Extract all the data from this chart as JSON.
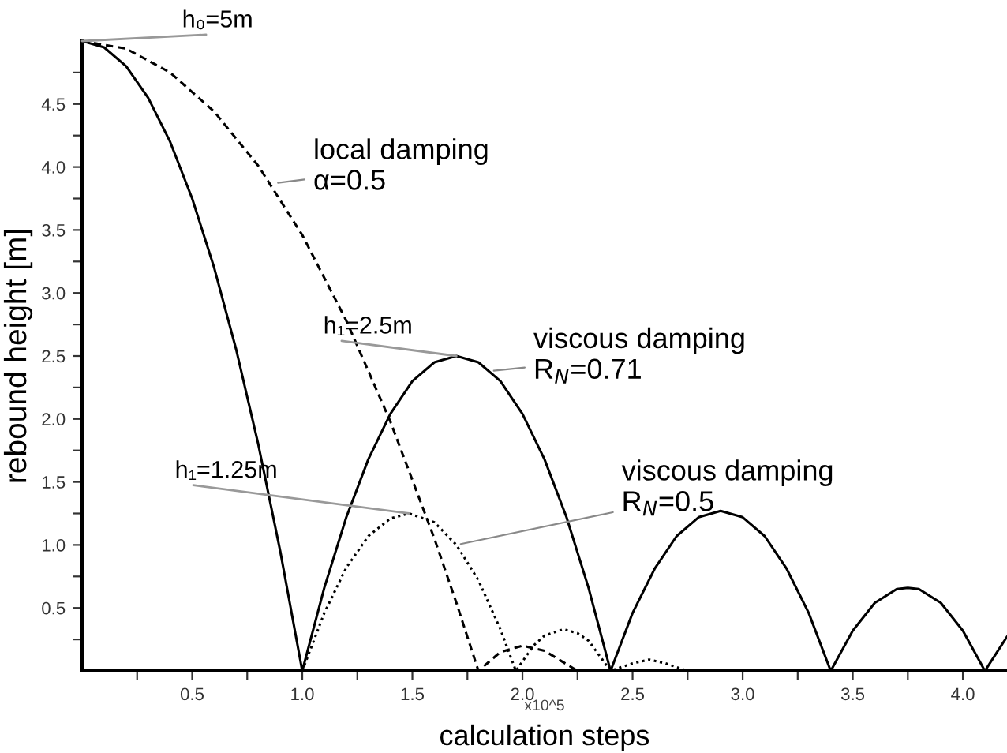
{
  "chart_data": {
    "type": "line",
    "xlabel": "calculation steps",
    "ylabel": "rebound height [m]",
    "xlim": [
      0,
      4.2
    ],
    "ylim": [
      0,
      5.0
    ],
    "xticks": [
      {
        "value": 0.25,
        "label": null
      },
      0.5,
      {
        "value": 0.75,
        "label": null
      },
      {
        "value": 1,
        "label": "1.0"
      },
      {
        "value": 1.25,
        "label": null
      },
      1.5,
      {
        "value": 1.75,
        "label": null
      },
      {
        "value": 2,
        "label": "2.0"
      },
      {
        "value": 2.25,
        "label": null
      },
      2.5,
      {
        "value": 2.75,
        "label": null
      },
      {
        "value": 3,
        "label": "3.0"
      },
      {
        "value": 3.25,
        "label": null
      },
      3.5,
      {
        "value": 3.75,
        "label": null
      },
      {
        "value": 4,
        "label": "4.0"
      }
    ],
    "yticks": [
      {
        "value": 0.25,
        "label": null
      },
      0.5,
      {
        "value": 0.75,
        "label": null
      },
      {
        "value": 1,
        "label": "1.0"
      },
      {
        "value": 1.25,
        "label": null
      },
      1.5,
      {
        "value": 1.75,
        "label": null
      },
      {
        "value": 2,
        "label": "2.0"
      },
      {
        "value": 2.25,
        "label": null
      },
      2.5,
      {
        "value": 2.75,
        "label": null
      },
      {
        "value": 3,
        "label": "3.0"
      },
      {
        "value": 3.25,
        "label": null
      },
      3.5,
      {
        "value": 3.75,
        "label": null
      },
      {
        "value": 4,
        "label": "4.0"
      },
      {
        "value": 4.25,
        "label": null
      },
      4.5,
      {
        "value": 4.75,
        "label": null
      }
    ],
    "grid": false,
    "legend": false,
    "marker": "none",
    "series": [
      {
        "name": "viscous damping\nR$_{N}$=0.71",
        "color": "#000000",
        "line_style": "solid",
        "x": [
          0,
          0.1,
          0.2,
          0.3,
          0.4,
          0.5,
          0.6,
          0.7,
          0.8,
          0.9,
          1.0,
          1.1,
          1.2,
          1.3,
          1.4,
          1.5,
          1.6,
          1.7,
          1.8,
          1.9,
          2.0,
          2.1,
          2.2,
          2.3,
          2.4,
          2.5,
          2.6,
          2.7,
          2.8,
          2.9,
          3.0,
          3.1,
          3.2,
          3.3,
          3.4,
          3.5,
          3.6,
          3.7,
          3.75,
          3.8,
          3.9,
          4.0,
          4.1,
          4.2
        ],
        "values": [
          5.0,
          4.95,
          4.8,
          4.55,
          4.2,
          3.75,
          3.2,
          2.55,
          1.8,
          0.95,
          0.0,
          0.66,
          1.22,
          1.68,
          2.04,
          2.3,
          2.45,
          2.5,
          2.45,
          2.3,
          2.04,
          1.68,
          1.22,
          0.66,
          0.0,
          0.46,
          0.81,
          1.07,
          1.22,
          1.27,
          1.22,
          1.07,
          0.81,
          0.46,
          0.0,
          0.32,
          0.54,
          0.65,
          0.66,
          0.65,
          0.54,
          0.32,
          0.0,
          0.27
        ]
      },
      {
        "name": "local damping\nα=0.5",
        "color": "#000000",
        "line_style": "dashed",
        "x": [
          0,
          0.2,
          0.4,
          0.6,
          0.8,
          1.0,
          1.2,
          1.4,
          1.6,
          1.7,
          1.8,
          1.9,
          2.0,
          2.1,
          2.25,
          3.0,
          4.2
        ],
        "values": [
          5.0,
          4.94,
          4.75,
          4.44,
          4.01,
          3.46,
          2.78,
          1.98,
          1.05,
          0.54,
          0.0,
          0.15,
          0.2,
          0.16,
          0.0,
          0.0,
          0.0
        ]
      },
      {
        "name": "viscous damping\nR$_{N}$=0.5",
        "color": "#000000",
        "line_style": "dotted",
        "x": [
          1.0,
          1.1,
          1.2,
          1.3,
          1.4,
          1.485,
          1.6,
          1.7,
          1.8,
          1.9,
          1.97,
          2.05,
          2.1,
          2.185,
          2.25,
          2.3,
          2.4,
          2.5,
          2.575,
          2.65,
          2.75,
          3.5,
          4.2
        ],
        "values": [
          0.0,
          0.46,
          0.82,
          1.07,
          1.21,
          1.25,
          1.18,
          1.0,
          0.72,
          0.33,
          0.0,
          0.2,
          0.28,
          0.33,
          0.3,
          0.24,
          0.0,
          0.06,
          0.09,
          0.06,
          0.0,
          0.0,
          0.0
        ]
      }
    ],
    "annotations": [
      {
        "text": "h₀=5m",
        "x": 0,
        "y": 5.0
      },
      {
        "text": "h₁=2.5m",
        "x": 1.7,
        "y": 2.5
      },
      {
        "text": "h₁=1.25m",
        "x": 1.485,
        "y": 1.25
      },
      "x10^5"
    ]
  }
}
